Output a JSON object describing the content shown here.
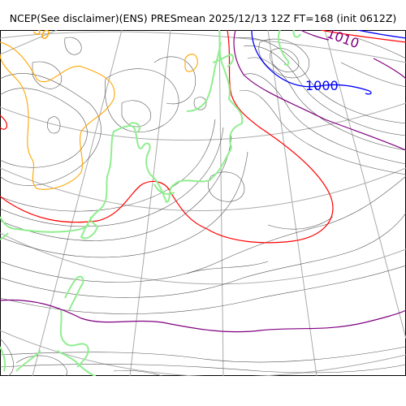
{
  "title": "NCEP(See disclaimer)(ENS) PRESmean 2025/12/13 12Z FT=168 (init 0612Z)",
  "contour_labels": [
    {
      "text": "1010",
      "color": "#800080"
    },
    {
      "text": "1000",
      "color": "#0000ff"
    },
    {
      "text": "30",
      "color": "#ffa500"
    }
  ],
  "colors": {
    "pressure_lines": "#555555",
    "key_isobar_1010": "#800080",
    "key_isobar_1000": "#0000ff",
    "key_isobar_1020": "#ff0000",
    "orange_contour": "#ffa500",
    "coastline": "#90ee90",
    "graticule": "#aaaaaa"
  }
}
